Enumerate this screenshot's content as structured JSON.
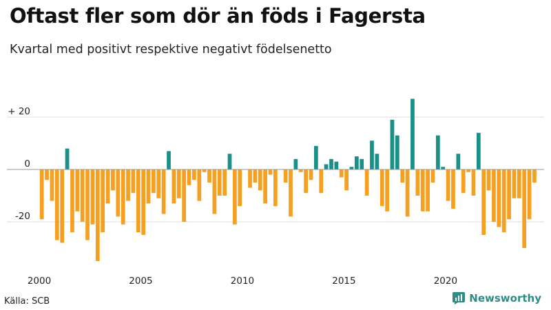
{
  "chart_data": {
    "type": "bar",
    "title": "Oftast fler som dör än föds i Fagersta",
    "subtitle": "Kvartal med positivt respektive negativt födelsenetto",
    "xlabel": "",
    "ylabel": "",
    "ylim": [
      -37,
      30
    ],
    "xlim": [
      2000,
      2024.75
    ],
    "yticks": [
      {
        "value": 20,
        "label": "+ 20"
      },
      {
        "value": 0,
        "label": "0"
      },
      {
        "value": -20,
        "label": "-20"
      }
    ],
    "xticks": [
      {
        "value": 2000,
        "label": "2000"
      },
      {
        "value": 2005,
        "label": "2005"
      },
      {
        "value": 2010,
        "label": "2010"
      },
      {
        "value": 2015,
        "label": "2015"
      },
      {
        "value": 2020,
        "label": "2020"
      }
    ],
    "grid": true,
    "colors": {
      "positive": "#1a9188",
      "negative": "#f5a021",
      "grid": "#dddddd",
      "zero": "#999999",
      "axis_text": "#222222"
    },
    "start_year": 2000,
    "start_quarter": 1,
    "values": [
      -19,
      -4,
      -12,
      -27,
      -28,
      8,
      -24,
      -16,
      -20,
      -27,
      -21,
      -35,
      -24,
      -13,
      -8,
      -18,
      -21,
      -12,
      -9,
      -24,
      -25,
      -13,
      -9,
      -11,
      -17,
      7,
      -13,
      -11,
      -20,
      -6,
      -4,
      -12,
      -1,
      -5,
      -17,
      -10,
      -10,
      6,
      -21,
      -14,
      0,
      -7,
      -5,
      -8,
      -13,
      -2,
      -14,
      0,
      -5,
      -18,
      4,
      -1,
      -9,
      -4,
      9,
      -9,
      2,
      4,
      3,
      -3,
      -8,
      1,
      5,
      4,
      -10,
      11,
      6,
      -14,
      -16,
      19,
      13,
      -5,
      -18,
      27,
      -10,
      -16,
      -16,
      -5,
      13,
      1,
      -12,
      -15,
      6,
      -9,
      -1,
      -10,
      14,
      -25,
      -8,
      -20,
      -22,
      -24,
      -19,
      -11,
      -11,
      -30,
      -19,
      -5
    ]
  },
  "source": "Källa: SCB",
  "brand": "Newsworthy"
}
